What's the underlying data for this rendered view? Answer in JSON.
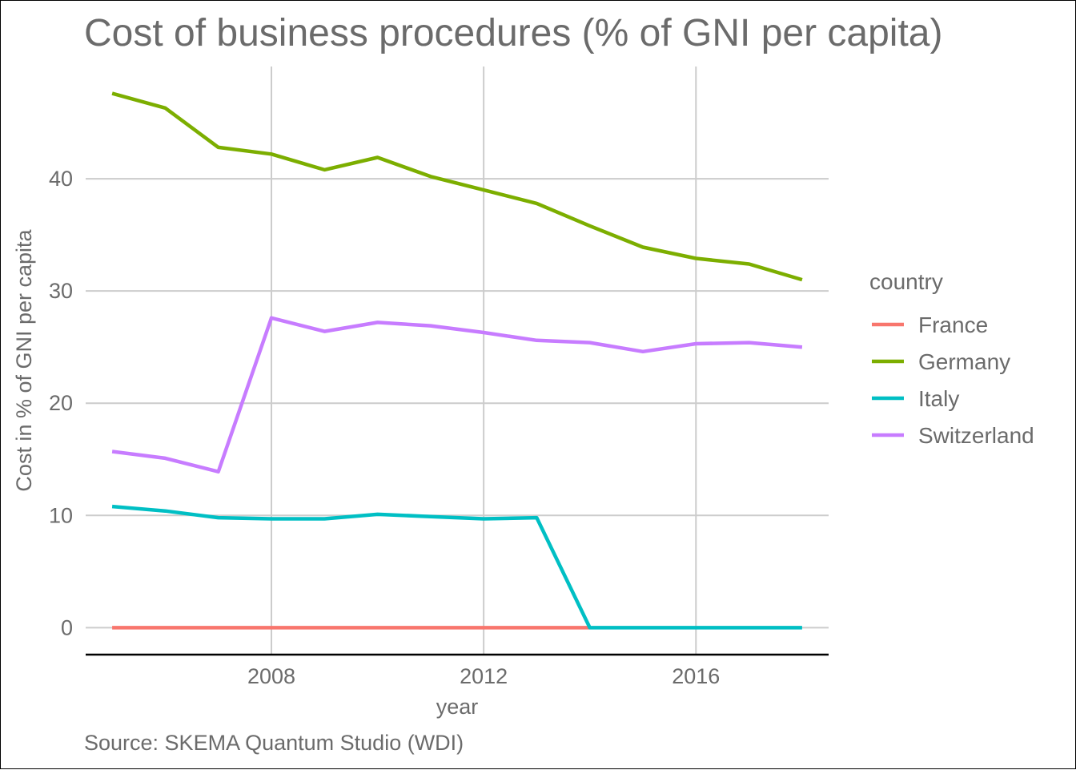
{
  "chart_data": {
    "type": "line",
    "title": "Cost of business procedures (% of GNI per capita)",
    "xlabel": "year",
    "ylabel": "Cost in % of GNI per capita",
    "caption": "Source: SKEMA Quantum Studio (WDI)",
    "xlim": [
      2004.5,
      2018.5
    ],
    "ylim": [
      -2.4,
      50
    ],
    "x_ticks": [
      2008,
      2012,
      2016
    ],
    "y_ticks": [
      0,
      10,
      20,
      30,
      40
    ],
    "grid": true,
    "legend": {
      "title": "country",
      "position": "right"
    },
    "x": [
      2005,
      2006,
      2007,
      2008,
      2009,
      2010,
      2011,
      2012,
      2013,
      2014,
      2015,
      2016,
      2017,
      2018
    ],
    "series": [
      {
        "name": "France",
        "color": "#F8766D",
        "values": [
          0,
          0,
          0,
          0,
          0,
          0,
          0,
          0,
          0,
          0,
          null,
          null,
          null,
          null
        ]
      },
      {
        "name": "Germany",
        "color": "#7CAE00",
        "values": [
          47.6,
          46.3,
          42.8,
          42.2,
          40.8,
          41.9,
          40.2,
          39.0,
          37.8,
          35.8,
          33.9,
          32.9,
          32.4,
          31.0
        ]
      },
      {
        "name": "Italy",
        "color": "#00BFC4",
        "values": [
          10.8,
          10.4,
          9.8,
          9.7,
          9.7,
          10.1,
          9.9,
          9.7,
          9.8,
          0,
          0,
          0,
          0,
          0
        ]
      },
      {
        "name": "Switzerland",
        "color": "#C77CFF",
        "values": [
          15.7,
          15.1,
          13.9,
          27.6,
          26.4,
          27.2,
          26.9,
          26.3,
          25.6,
          25.4,
          24.6,
          25.3,
          25.4,
          25.0
        ]
      }
    ]
  }
}
